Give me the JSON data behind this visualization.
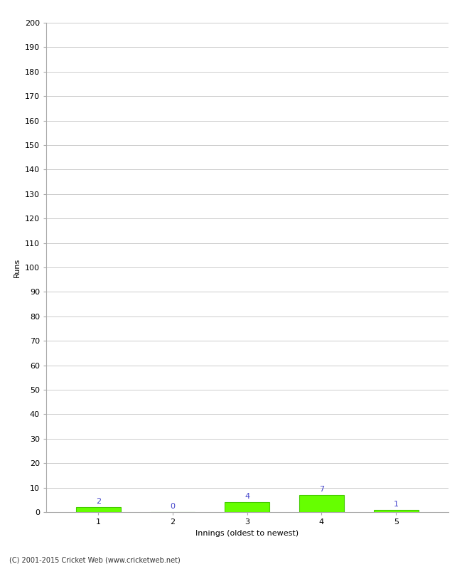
{
  "xlabel": "Innings (oldest to newest)",
  "ylabel": "Runs",
  "categories": [
    1,
    2,
    3,
    4,
    5
  ],
  "values": [
    2,
    0,
    4,
    7,
    1
  ],
  "bar_color": "#66ff00",
  "bar_edge_color": "#44cc00",
  "label_color": "#4444cc",
  "ylim": [
    0,
    200
  ],
  "ytick_step": 10,
  "background_color": "#ffffff",
  "grid_color": "#cccccc",
  "footer": "(C) 2001-2015 Cricket Web (www.cricketweb.net)"
}
